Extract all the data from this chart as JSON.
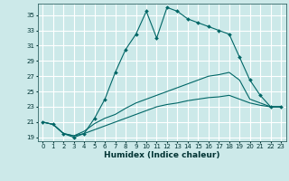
{
  "xlabel": "Humidex (Indice chaleur)",
  "bg_color": "#cce9e9",
  "grid_color": "#ffffff",
  "line_color": "#006666",
  "xlim": [
    -0.5,
    23.5
  ],
  "ylim": [
    18.5,
    36.5
  ],
  "yticks": [
    19,
    21,
    23,
    25,
    27,
    29,
    31,
    33,
    35
  ],
  "xticks": [
    0,
    1,
    2,
    3,
    4,
    5,
    6,
    7,
    8,
    9,
    10,
    11,
    12,
    13,
    14,
    15,
    16,
    17,
    18,
    19,
    20,
    21,
    22,
    23
  ],
  "series": [
    {
      "x": [
        0,
        1,
        2,
        3,
        4,
        5,
        6,
        7,
        8,
        9,
        10,
        11,
        12,
        13,
        14,
        15,
        16,
        17,
        18,
        19,
        20,
        21,
        22,
        23
      ],
      "y": [
        21.0,
        20.7,
        19.5,
        19.0,
        19.5,
        21.5,
        24.0,
        27.5,
        30.5,
        32.5,
        35.5,
        32.0,
        36.0,
        35.5,
        34.5,
        34.0,
        33.5,
        33.0,
        32.5,
        29.5,
        26.5,
        24.5,
        23.0,
        23.0
      ],
      "marker": true
    },
    {
      "x": [
        0,
        1,
        2,
        3,
        4,
        5,
        6,
        7,
        8,
        9,
        10,
        11,
        12,
        13,
        14,
        15,
        16,
        17,
        18,
        19,
        20,
        21,
        22,
        23
      ],
      "y": [
        21.0,
        20.7,
        19.5,
        19.2,
        19.8,
        20.8,
        21.5,
        22.0,
        22.8,
        23.5,
        24.0,
        24.5,
        25.0,
        25.5,
        26.0,
        26.5,
        27.0,
        27.2,
        27.5,
        26.5,
        24.0,
        23.5,
        23.0,
        23.0
      ],
      "marker": false
    },
    {
      "x": [
        0,
        1,
        2,
        3,
        4,
        5,
        6,
        7,
        8,
        9,
        10,
        11,
        12,
        13,
        14,
        15,
        16,
        17,
        18,
        19,
        20,
        21,
        22,
        23
      ],
      "y": [
        21.0,
        20.7,
        19.5,
        19.2,
        19.5,
        20.0,
        20.5,
        21.0,
        21.5,
        22.0,
        22.5,
        23.0,
        23.3,
        23.5,
        23.8,
        24.0,
        24.2,
        24.3,
        24.5,
        24.0,
        23.5,
        23.2,
        23.0,
        23.0
      ],
      "marker": false
    }
  ],
  "tick_fontsize": 5.0,
  "xlabel_fontsize": 6.5
}
